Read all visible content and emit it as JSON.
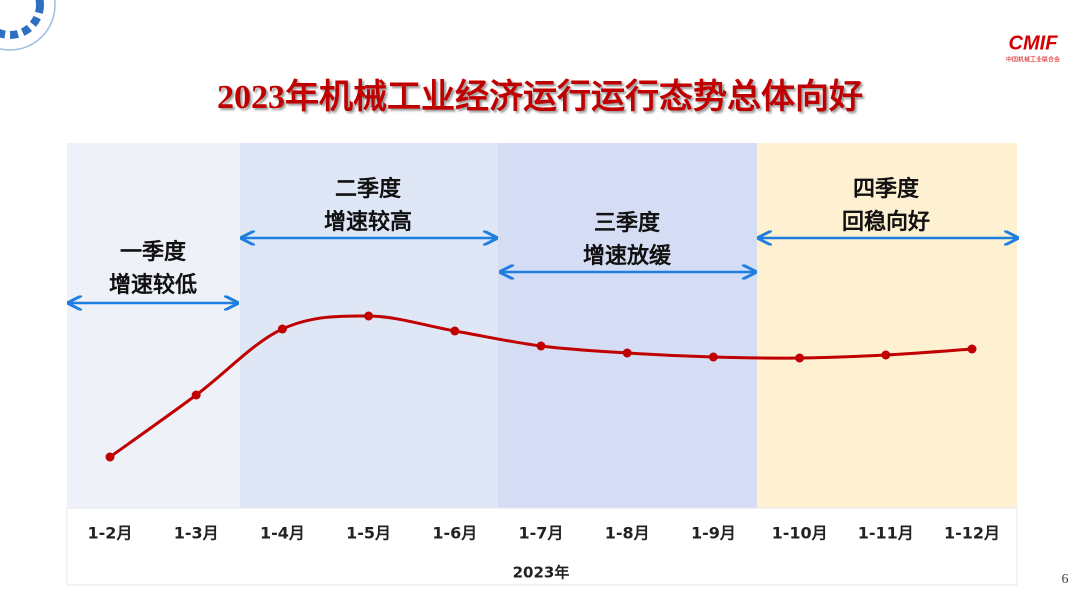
{
  "header": {
    "title": "2023年机械工业经济运行运行态势总体向好",
    "logo": "CMIF",
    "org": "中国机械工业联合会"
  },
  "chart_data": {
    "type": "line",
    "categories": [
      "1-2月",
      "1-3月",
      "1-4月",
      "1-5月",
      "1-6月",
      "1-7月",
      "1-8月",
      "1-9月",
      "1-10月",
      "1-11月",
      "1-12月"
    ],
    "values": [
      2.3,
      8.5,
      15.1,
      16.4,
      14.9,
      13.4,
      12.7,
      12.3,
      12.2,
      12.5,
      13.1
    ],
    "color": "#c00000",
    "xlabel": "2023年",
    "annotations": [
      [
        "一季度",
        "增速较低"
      ],
      [
        "二季度",
        "增速较高"
      ],
      [
        "三季度",
        "增速放缓"
      ],
      [
        "四季度",
        "回稳向好"
      ]
    ]
  },
  "page_number": "6"
}
